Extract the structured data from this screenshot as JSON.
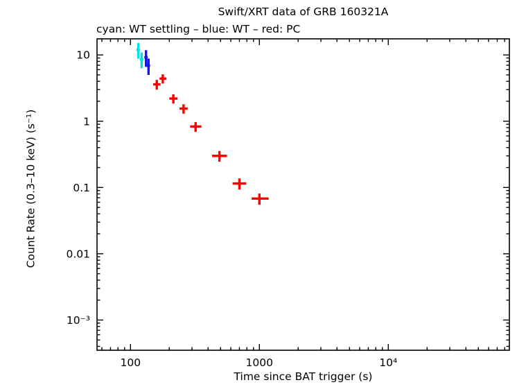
{
  "chart_data": {
    "type": "scatter",
    "title": "Swift/XRT data of GRB 160321A",
    "subtitle": "cyan: WT settling – blue: WT – red: PC",
    "xlabel": "Time since BAT trigger (s)",
    "ylabel": "Count Rate (0.3–10 keV) (s⁻¹)",
    "xscale": "log",
    "yscale": "log",
    "xlim": [
      55,
      87000
    ],
    "ylim": [
      0.00035,
      17.5
    ],
    "grid": false,
    "legend_position": "none",
    "xticks": [
      {
        "value": 100,
        "label": "100"
      },
      {
        "value": 1000,
        "label": "1000"
      },
      {
        "value": 10000,
        "label": "10⁴"
      }
    ],
    "yticks": [
      {
        "value": 0.001,
        "label": "10⁻³"
      },
      {
        "value": 0.01,
        "label": "0.01"
      },
      {
        "value": 0.1,
        "label": "0.1"
      },
      {
        "value": 1,
        "label": "1"
      },
      {
        "value": 10,
        "label": "10"
      }
    ],
    "series": [
      {
        "name": "WT settling",
        "color": "#00e0e8",
        "points": [
          {
            "t": 115,
            "t_lo": 111,
            "t_hi": 119,
            "rate": 12.0,
            "rate_err": 3.2
          },
          {
            "t": 122,
            "t_lo": 118,
            "t_hi": 126,
            "rate": 8.6,
            "rate_err": 2.3
          }
        ]
      },
      {
        "name": "WT",
        "color": "#1414ff",
        "points": [
          {
            "t": 132,
            "t_lo": 128,
            "t_hi": 136,
            "rate": 9.2,
            "rate_err": 2.6
          },
          {
            "t": 138,
            "t_lo": 134,
            "t_hi": 142,
            "rate": 6.9,
            "rate_err": 1.9
          }
        ]
      },
      {
        "name": "PC",
        "color": "#ff0000",
        "points": [
          {
            "t": 160,
            "t_lo": 150,
            "t_hi": 171,
            "rate": 3.6,
            "rate_err": 0.6
          },
          {
            "t": 178,
            "t_lo": 168,
            "t_hi": 190,
            "rate": 4.4,
            "rate_err": 0.7
          },
          {
            "t": 215,
            "t_lo": 200,
            "t_hi": 232,
            "rate": 2.2,
            "rate_err": 0.35
          },
          {
            "t": 258,
            "t_lo": 240,
            "t_hi": 278,
            "rate": 1.55,
            "rate_err": 0.25
          },
          {
            "t": 320,
            "t_lo": 290,
            "t_hi": 355,
            "rate": 0.83,
            "rate_err": 0.14
          },
          {
            "t": 490,
            "t_lo": 430,
            "t_hi": 560,
            "rate": 0.3,
            "rate_err": 0.055
          },
          {
            "t": 700,
            "t_lo": 620,
            "t_hi": 790,
            "rate": 0.115,
            "rate_err": 0.022
          },
          {
            "t": 1000,
            "t_lo": 870,
            "t_hi": 1180,
            "rate": 0.068,
            "rate_err": 0.013
          }
        ]
      }
    ]
  }
}
